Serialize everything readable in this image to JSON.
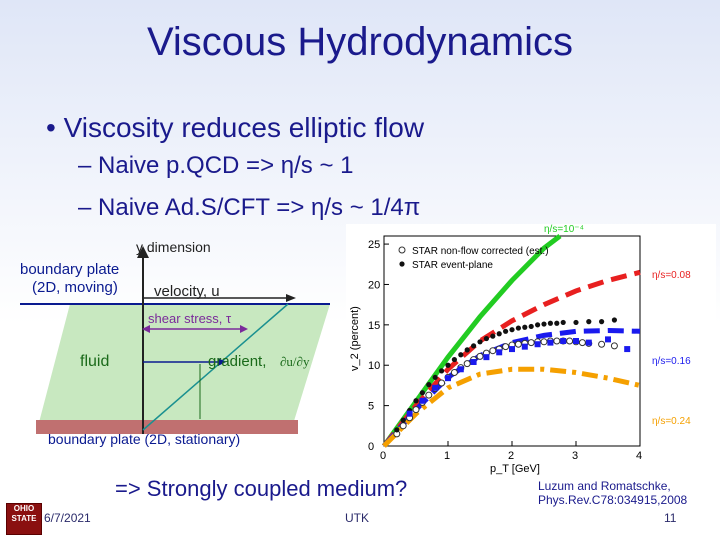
{
  "slide": {
    "title": "Viscous Hydrodynamics",
    "bullet": "• Viscosity reduces elliptic flow",
    "sub1": "– Naive p.QCD => η/s ~ 1",
    "sub2": "– Naive Ad.S/CFT => η/s ~ 1/4π",
    "conclusion": "=> Strongly coupled medium?",
    "reference": [
      "Luzum and Romatschke,",
      "Phys.Rev.C78:034915,2008"
    ]
  },
  "footer": {
    "date": "6/7/2021",
    "center": "UTK",
    "page": "11",
    "logo": "OHIO STATE"
  },
  "diagram": {
    "y_label": "y dimension",
    "top_plate": [
      "boundary plate",
      "(2D, moving)"
    ],
    "velocity": "velocity, u",
    "shear": "shear stress, τ",
    "fluid": "fluid",
    "gradient": "gradient,",
    "gradient_expr": "∂u/∂y",
    "bottom_plate": "boundary plate (2D, stationary)"
  },
  "chart_data": {
    "type": "line",
    "xlabel": "p_T [GeV]",
    "ylabel": "v_2 (percent)",
    "xlim": [
      0,
      4
    ],
    "ylim": [
      0,
      26
    ],
    "xticks": [
      0,
      1,
      2,
      3,
      4
    ],
    "yticks": [
      0,
      5,
      10,
      15,
      20,
      25
    ],
    "legend": [
      "STAR non-flow corrected (est.)",
      "STAR event-plane"
    ],
    "curves": [
      {
        "name": "η/s=10⁻⁴",
        "color": "#22cc22",
        "style": "solid",
        "x": [
          0,
          0.5,
          1,
          1.5,
          2,
          2.5,
          2.75
        ],
        "y": [
          0,
          5.5,
          11,
          16,
          20.5,
          24.5,
          26
        ]
      },
      {
        "name": "η/s=0.08",
        "color": "#e82020",
        "style": "dash",
        "x": [
          0,
          0.5,
          1,
          1.5,
          2,
          2.5,
          3,
          3.5,
          4
        ],
        "y": [
          0,
          5,
          9.5,
          13,
          15.5,
          17.5,
          19.2,
          20.5,
          21.5
        ]
      },
      {
        "name": "η/s=0.16",
        "color": "#1a1aee",
        "style": "dash",
        "x": [
          0,
          0.5,
          1,
          1.5,
          2,
          2.5,
          3,
          3.5,
          4
        ],
        "y": [
          0,
          4.5,
          8.5,
          11.2,
          12.8,
          13.7,
          14.2,
          14.3,
          14.2
        ]
      },
      {
        "name": "η/s=0.24",
        "color": "#f5a000",
        "style": "dashdot",
        "x": [
          0,
          0.5,
          1,
          1.5,
          2,
          2.5,
          3,
          3.5,
          4
        ],
        "y": [
          0,
          4,
          7.2,
          8.9,
          9.5,
          9.5,
          9.1,
          8.4,
          7.5
        ]
      }
    ],
    "data_series": [
      {
        "name": "STAR non-flow corrected (est.)",
        "marker": "open-circle",
        "x": [
          0.2,
          0.3,
          0.4,
          0.5,
          0.6,
          0.7,
          0.8,
          0.9,
          1.0,
          1.1,
          1.2,
          1.3,
          1.4,
          1.5,
          1.6,
          1.7,
          1.8,
          1.9,
          2.0,
          2.1,
          2.2,
          2.3,
          2.4,
          2.5,
          2.6,
          2.7,
          2.8,
          2.9,
          3.0,
          3.1,
          3.2,
          3.4,
          3.6
        ],
        "y": [
          1.5,
          2.5,
          3.5,
          4.5,
          5.4,
          6.3,
          7.1,
          7.8,
          8.5,
          9.1,
          9.7,
          10.2,
          10.7,
          11.1,
          11.5,
          11.8,
          12.0,
          12.3,
          12.5,
          12.6,
          12.7,
          12.8,
          12.9,
          12.9,
          13.0,
          13.0,
          13.0,
          13.0,
          12.9,
          12.8,
          12.7,
          12.6,
          12.4
        ]
      },
      {
        "name": "STAR event-plane",
        "marker": "filled-circle",
        "x": [
          0.2,
          0.3,
          0.4,
          0.5,
          0.6,
          0.7,
          0.8,
          0.9,
          1.0,
          1.1,
          1.2,
          1.3,
          1.4,
          1.5,
          1.6,
          1.7,
          1.8,
          1.9,
          2.0,
          2.1,
          2.2,
          2.3,
          2.4,
          2.5,
          2.6,
          2.7,
          2.8,
          3.0,
          3.2,
          3.4,
          3.6
        ],
        "y": [
          2.0,
          3.2,
          4.4,
          5.6,
          6.6,
          7.6,
          8.5,
          9.3,
          10.0,
          10.7,
          11.3,
          11.9,
          12.4,
          12.9,
          13.3,
          13.6,
          13.9,
          14.2,
          14.4,
          14.6,
          14.7,
          14.8,
          15.0,
          15.1,
          15.2,
          15.2,
          15.3,
          15.3,
          15.4,
          15.4,
          15.6
        ]
      },
      {
        "name": "",
        "marker": "blue-square",
        "x": [
          0.4,
          0.6,
          0.8,
          1.0,
          1.2,
          1.4,
          1.6,
          1.8,
          2.0,
          2.2,
          2.4,
          2.6,
          2.8,
          3.0,
          3.2,
          3.5,
          3.8
        ],
        "y": [
          4.0,
          5.6,
          7.2,
          8.4,
          9.5,
          10.4,
          11.0,
          11.6,
          12.0,
          12.3,
          12.6,
          12.8,
          13.0,
          13.0,
          12.8,
          13.2,
          12.0
        ]
      }
    ]
  }
}
